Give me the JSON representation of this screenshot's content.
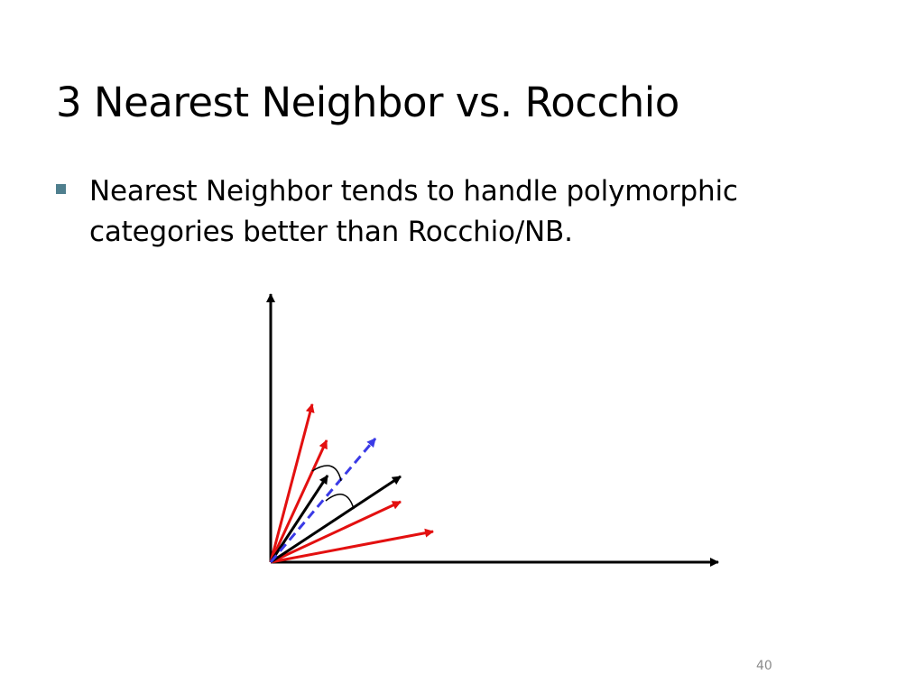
{
  "slide": {
    "title": "3 Nearest Neighbor vs. Rocchio",
    "bullet": "Nearest Neighbor tends to handle polymorphic categories better than Rocchio/NB.",
    "page_number": "40"
  },
  "colors": {
    "axis": "#000000",
    "class_a_vectors": "#e31010",
    "class_b_vectors": "#000000",
    "centroid_vector": "#3a3ae6",
    "bullet_marker": "#4f7f8e"
  }
}
